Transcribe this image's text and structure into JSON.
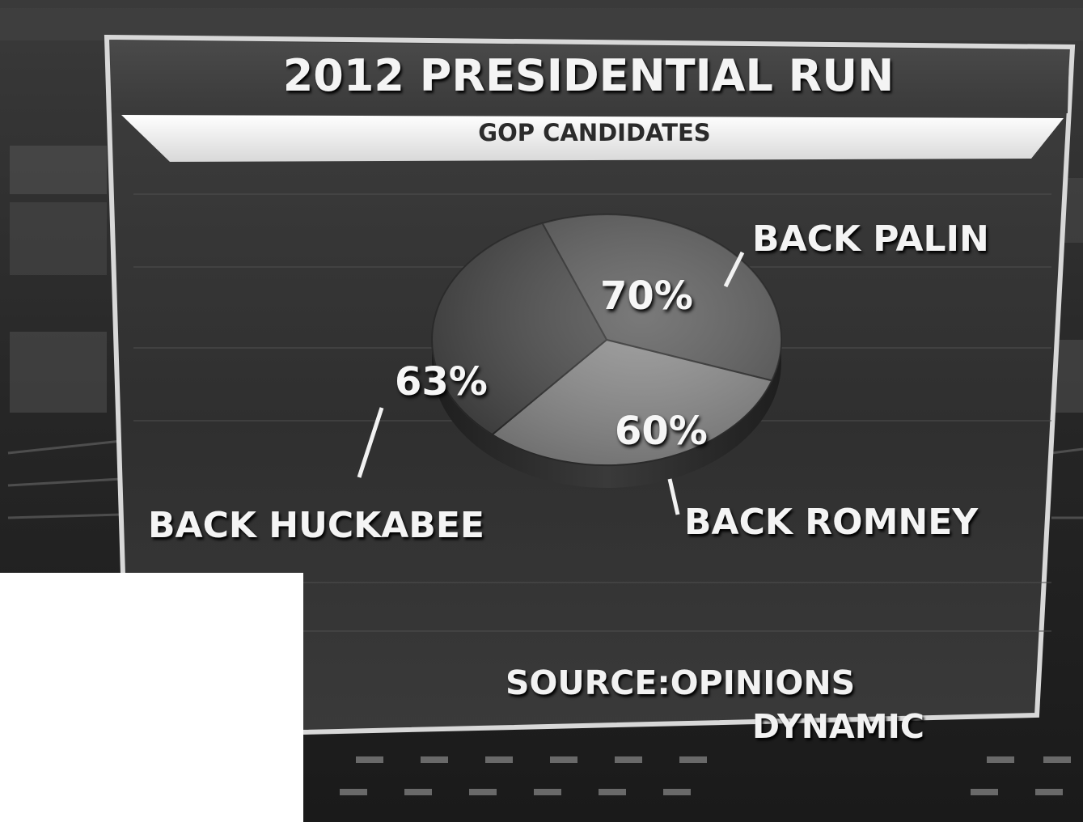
{
  "header": {
    "title": "2012 PRESIDENTIAL RUN",
    "subtitle": "GOP CANDIDATES"
  },
  "footer": {
    "source_line_1": "SOURCE:OPINIONS",
    "source_line_2": "DYNAMIC"
  },
  "colors": {
    "background": "#2a2a2a",
    "panel": "#3b3b3b",
    "subtitle_bar": "#f0f0f0",
    "text": "#f4f4f4",
    "slice_palin": "#5c5c5c",
    "slice_romney": "#8e8e8e",
    "slice_huckabee": "#4a4a4a"
  },
  "chart_data": {
    "type": "pie",
    "title": "2012 PRESIDENTIAL RUN",
    "subtitle": "GOP CANDIDATES",
    "categories": [
      "BACK PALIN",
      "BACK ROMNEY",
      "BACK HUCKABEE"
    ],
    "values": [
      70,
      60,
      63
    ],
    "value_labels": [
      "70%",
      "60%",
      "63%"
    ],
    "unit": "%",
    "legend": "none (direct labels)"
  }
}
